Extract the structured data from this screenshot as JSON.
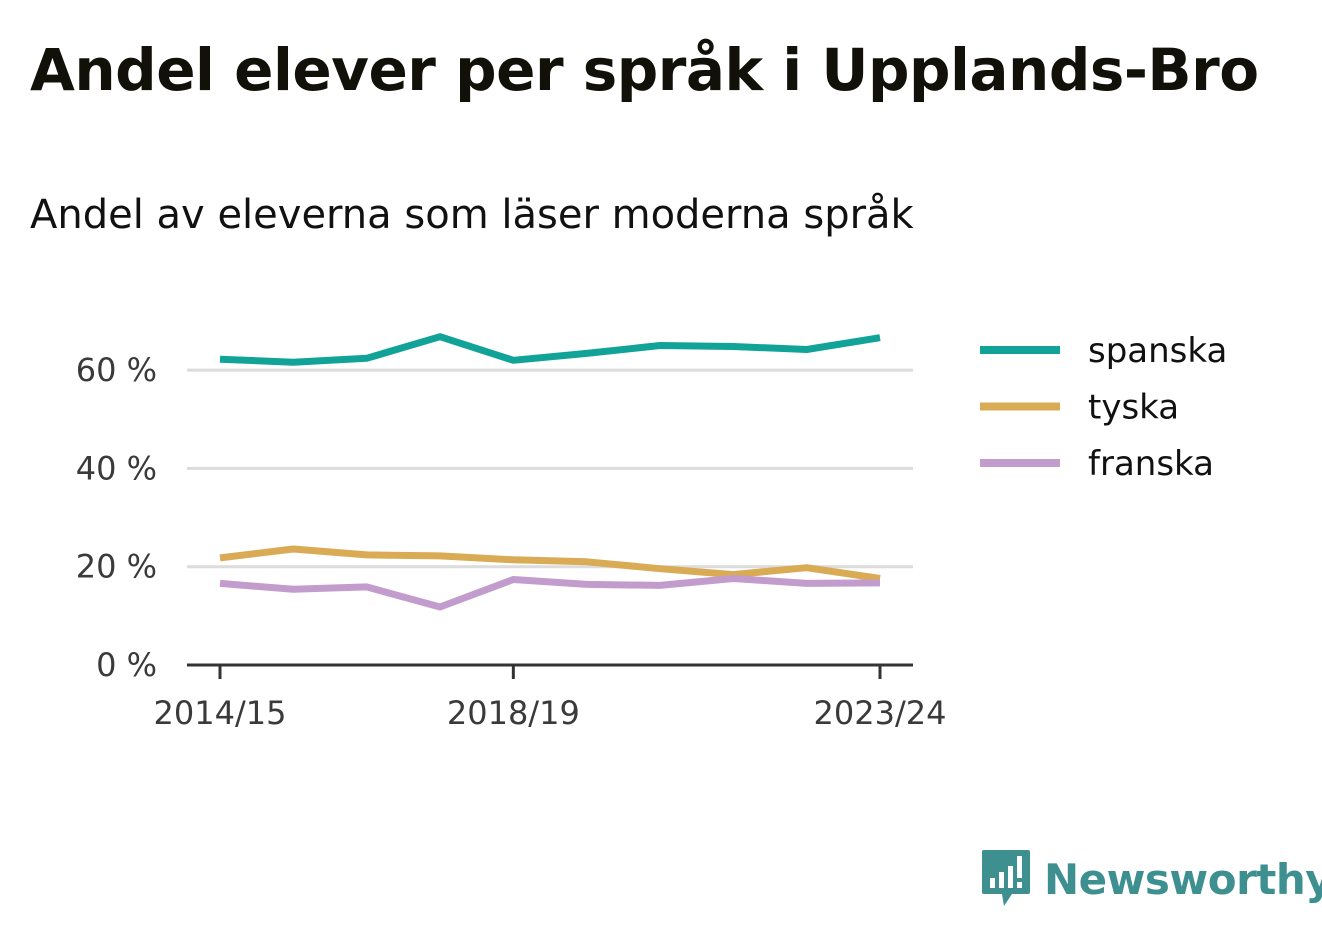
{
  "title": "Andel elever per språk i Upplands-Bro",
  "subtitle": "Andel av eleverna som läser moderna språk",
  "brand": "Newsworthy",
  "colors": {
    "spanska": "#12a398",
    "tyska": "#d9ab55",
    "franska": "#c29ccc",
    "grid": "#dcdcdc",
    "axis": "#333333",
    "brand": "#3d8f90"
  },
  "chart_data": {
    "type": "line",
    "x": [
      "2014/15",
      "2015/16",
      "2016/17",
      "2017/18",
      "2018/19",
      "2019/20",
      "2020/21",
      "2021/22",
      "2022/23",
      "2023/24"
    ],
    "x_tick_labels": [
      "2014/15",
      "2018/19",
      "2023/24"
    ],
    "y_ticks": [
      0,
      20,
      40,
      60
    ],
    "y_tick_labels": [
      "0 %",
      "20 %",
      "40 %",
      "60 %"
    ],
    "ylim": [
      0,
      70
    ],
    "grid": true,
    "legend_position": "right",
    "series": [
      {
        "name": "spanska",
        "values": [
          62.2,
          61.6,
          62.4,
          66.8,
          62.0,
          63.4,
          65.0,
          64.8,
          64.2,
          66.6
        ]
      },
      {
        "name": "tyska",
        "values": [
          21.8,
          23.6,
          22.4,
          22.2,
          21.4,
          21.0,
          19.6,
          18.4,
          19.8,
          17.6
        ]
      },
      {
        "name": "franska",
        "values": [
          16.6,
          15.4,
          15.9,
          11.8,
          17.4,
          16.4,
          16.2,
          17.6,
          16.6,
          16.7
        ]
      }
    ]
  }
}
